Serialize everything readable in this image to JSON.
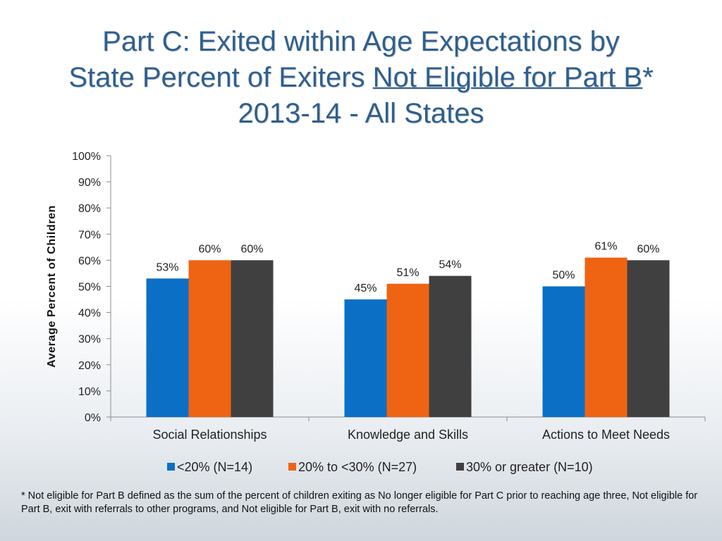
{
  "title": {
    "line1": "Part C:  Exited within Age Expectations by",
    "line2_pre": "State Percent of Exiters ",
    "line2_underlined": "Not Eligible for Part B",
    "line2_post": "*",
    "line3": "2013-14  - All States"
  },
  "footnote": "* Not eligible for Part B defined as the sum of the percent of children exiting as No longer eligible for Part C prior to reaching age three,  Not eligible for Part B, exit with referrals to other programs, and Not eligible for Part B, exit with no referrals.",
  "chart_data": {
    "type": "bar",
    "title": "",
    "xlabel": "",
    "ylabel": "Average Percent of Children",
    "ylim": [
      0,
      100
    ],
    "yticks": [
      0,
      10,
      20,
      30,
      40,
      50,
      60,
      70,
      80,
      90,
      100
    ],
    "ytick_labels": [
      "0%",
      "10%",
      "20%",
      "30%",
      "40%",
      "50%",
      "60%",
      "70%",
      "80%",
      "90%",
      "100%"
    ],
    "categories": [
      "Social Relationships",
      "Knowledge and Skills",
      "Actions to Meet Needs"
    ],
    "series": [
      {
        "name": "<20% (N=14)",
        "color": "#0b70c5",
        "values": [
          53,
          45,
          50
        ],
        "labels": [
          "53%",
          "45%",
          "50%"
        ]
      },
      {
        "name": "20% to <30% (N=27)",
        "color": "#ef6413",
        "values": [
          60,
          51,
          61
        ],
        "labels": [
          "60%",
          "51%",
          "61%"
        ]
      },
      {
        "name": "30% or greater (N=10)",
        "color": "#404040",
        "values": [
          60,
          54,
          60
        ],
        "labels": [
          "60%",
          "54%",
          "60%"
        ]
      }
    ],
    "legend": "bottom",
    "grid": false
  }
}
